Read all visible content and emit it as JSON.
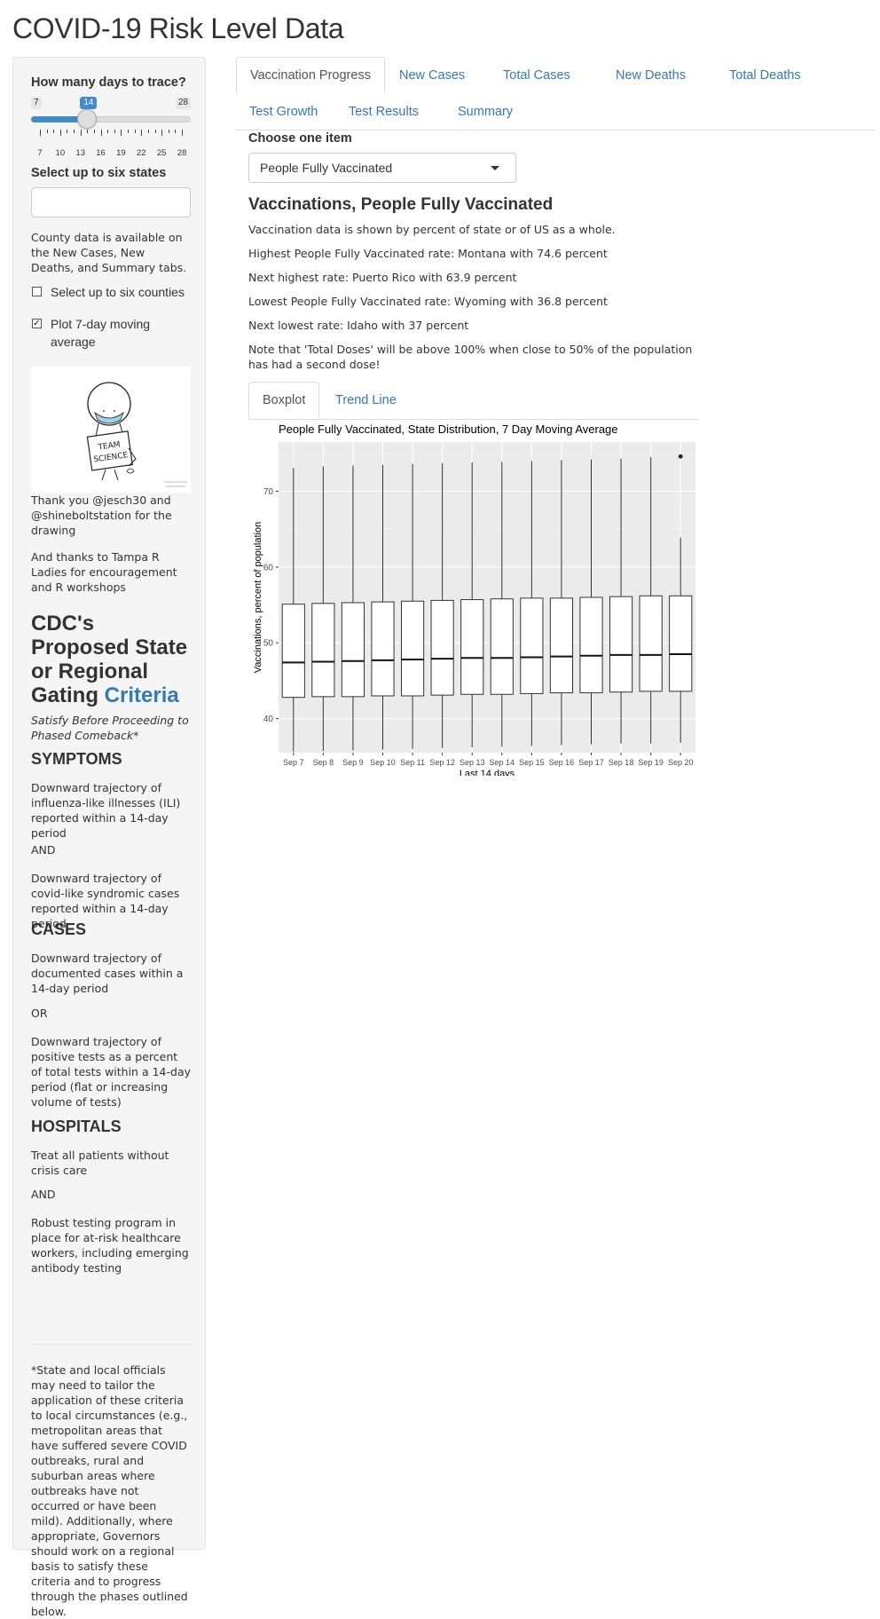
{
  "app": {
    "title": "COVID-19 Risk Level Data"
  },
  "sidebar": {
    "days_label": "How many days to trace?",
    "slider": {
      "min": 7,
      "max": 28,
      "value": 14,
      "min_label": "7",
      "max_label": "28",
      "value_label": "14",
      "tick_labels": [
        "7",
        "10",
        "13",
        "16",
        "19",
        "22",
        "25",
        "28"
      ]
    },
    "states_label": "Select up to six states",
    "states_input_value": "",
    "county_note": "County data is available on the New Cases, New Deaths, and Summary tabs.",
    "counties_checkbox": {
      "label": "Select up to six counties",
      "checked": false
    },
    "moving_avg_checkbox": {
      "label": "Plot 7-day moving average",
      "checked": true
    },
    "drawing": {
      "sign_text_1": "TEAM",
      "sign_text_2": "SCIENCE"
    },
    "thanks_1": "Thank you @jesch30 and @shineboltstation for the drawing",
    "thanks_2": "And thanks to Tampa R Ladies for encouragement and R workshops",
    "cdc_title_prefix": "CDC's Proposed State or Regional Gating",
    "cdc_title_link": "Criteria",
    "satisfy_note": "Satisfy Before Proceeding to Phased Comeback*",
    "symptoms": {
      "heading": "SYMPTOMS",
      "p1": "Downward trajectory of influenza-like illnesses (ILI) reported within a 14-day period",
      "and": "AND",
      "p2": "Downward trajectory of covid-like syndromic cases reported within a 14-day period"
    },
    "cases": {
      "heading": "CASES",
      "p1": "Downward trajectory of documented cases within a 14-day period",
      "or": "OR",
      "p2": "Downward trajectory of positive tests as a percent of total tests within a 14-day period (flat or increasing volume of tests)"
    },
    "hospitals": {
      "heading": "HOSPITALS",
      "p1": "Treat all patients without crisis care",
      "and": "AND",
      "p2": "Robust testing program in place for at-risk healthcare workers, including emerging antibody testing"
    },
    "footnote": "*State and local officials may need to tailor the application of these criteria to local circumstances (e.g., metropolitan areas that have suffered severe COVID outbreaks, rural and suburban areas where outbreaks have not occurred or have been mild). Additionally, where appropriate, Governors should work on a regional basis to satisfy these criteria and to progress through the phases outlined below."
  },
  "tabs": [
    {
      "label": "Vaccination Progress",
      "active": true
    },
    {
      "label": "New Cases"
    },
    {
      "label": "Total Cases"
    },
    {
      "label": "New Deaths"
    },
    {
      "label": "Total Deaths"
    },
    {
      "label": "Test Growth"
    },
    {
      "label": "Test Results"
    },
    {
      "label": "Summary"
    }
  ],
  "main": {
    "choose_label": "Choose one item",
    "select_value": "People Fully Vaccinated",
    "heading": "Vaccinations, People Fully Vaccinated",
    "p1": "Vaccination data is shown by percent of state or of US as a whole.",
    "p2": "Highest People Fully Vaccinated rate: Montana with 74.6 percent",
    "p3": "Next highest rate: Puerto Rico with 63.9 percent",
    "p4": "Lowest People Fully Vaccinated rate: Wyoming with 36.8 percent",
    "p5": "Next lowest rate: Idaho with 37 percent",
    "p6": "Note that 'Total Doses' will be above 100% when close to 50% of the population has had a second dose!",
    "subtabs": [
      {
        "label": "Boxplot",
        "active": true
      },
      {
        "label": "Trend Line"
      }
    ]
  },
  "chart_data": {
    "type": "boxplot",
    "title": "People Fully Vaccinated, State Distribution, 7 Day Moving Average",
    "xlabel": "Last 14 days",
    "ylabel": "Vaccinations, percent of population",
    "ylim": [
      35.5,
      76.5
    ],
    "yticks": [
      40,
      50,
      60,
      70
    ],
    "categories": [
      "Sep 7",
      "Sep 8",
      "Sep 9",
      "Sep 10",
      "Sep 11",
      "Sep 12",
      "Sep 13",
      "Sep 14",
      "Sep 15",
      "Sep 16",
      "Sep 17",
      "Sep 18",
      "Sep 19",
      "Sep 20"
    ],
    "boxes": [
      {
        "min": 35.6,
        "q1": 42.8,
        "median": 47.4,
        "q3": 55.1,
        "max": 73.1
      },
      {
        "min": 35.7,
        "q1": 42.9,
        "median": 47.5,
        "q3": 55.2,
        "max": 73.3
      },
      {
        "min": 35.8,
        "q1": 42.9,
        "median": 47.6,
        "q3": 55.3,
        "max": 73.4
      },
      {
        "min": 35.9,
        "q1": 43.0,
        "median": 47.7,
        "q3": 55.4,
        "max": 73.5
      },
      {
        "min": 36.0,
        "q1": 43.0,
        "median": 47.8,
        "q3": 55.5,
        "max": 73.6
      },
      {
        "min": 36.1,
        "q1": 43.1,
        "median": 47.9,
        "q3": 55.6,
        "max": 73.7
      },
      {
        "min": 36.2,
        "q1": 43.2,
        "median": 48.0,
        "q3": 55.7,
        "max": 73.8
      },
      {
        "min": 36.3,
        "q1": 43.2,
        "median": 48.0,
        "q3": 55.8,
        "max": 73.9
      },
      {
        "min": 36.4,
        "q1": 43.3,
        "median": 48.1,
        "q3": 55.9,
        "max": 74.0
      },
      {
        "min": 36.5,
        "q1": 43.4,
        "median": 48.2,
        "q3": 55.9,
        "max": 74.1
      },
      {
        "min": 36.6,
        "q1": 43.4,
        "median": 48.3,
        "q3": 56.0,
        "max": 74.2
      },
      {
        "min": 36.7,
        "q1": 43.5,
        "median": 48.4,
        "q3": 56.1,
        "max": 74.3
      },
      {
        "min": 36.7,
        "q1": 43.6,
        "median": 48.4,
        "q3": 56.2,
        "max": 74.5
      },
      {
        "min": 36.8,
        "q1": 43.6,
        "median": 48.5,
        "q3": 56.2,
        "max": 63.9,
        "outliers": [
          74.6
        ]
      }
    ],
    "grid": true,
    "colors": {
      "panel": "#ebebeb",
      "grid": "#ffffff",
      "box_fill": "#ffffff",
      "box_stroke": "#333333"
    }
  }
}
